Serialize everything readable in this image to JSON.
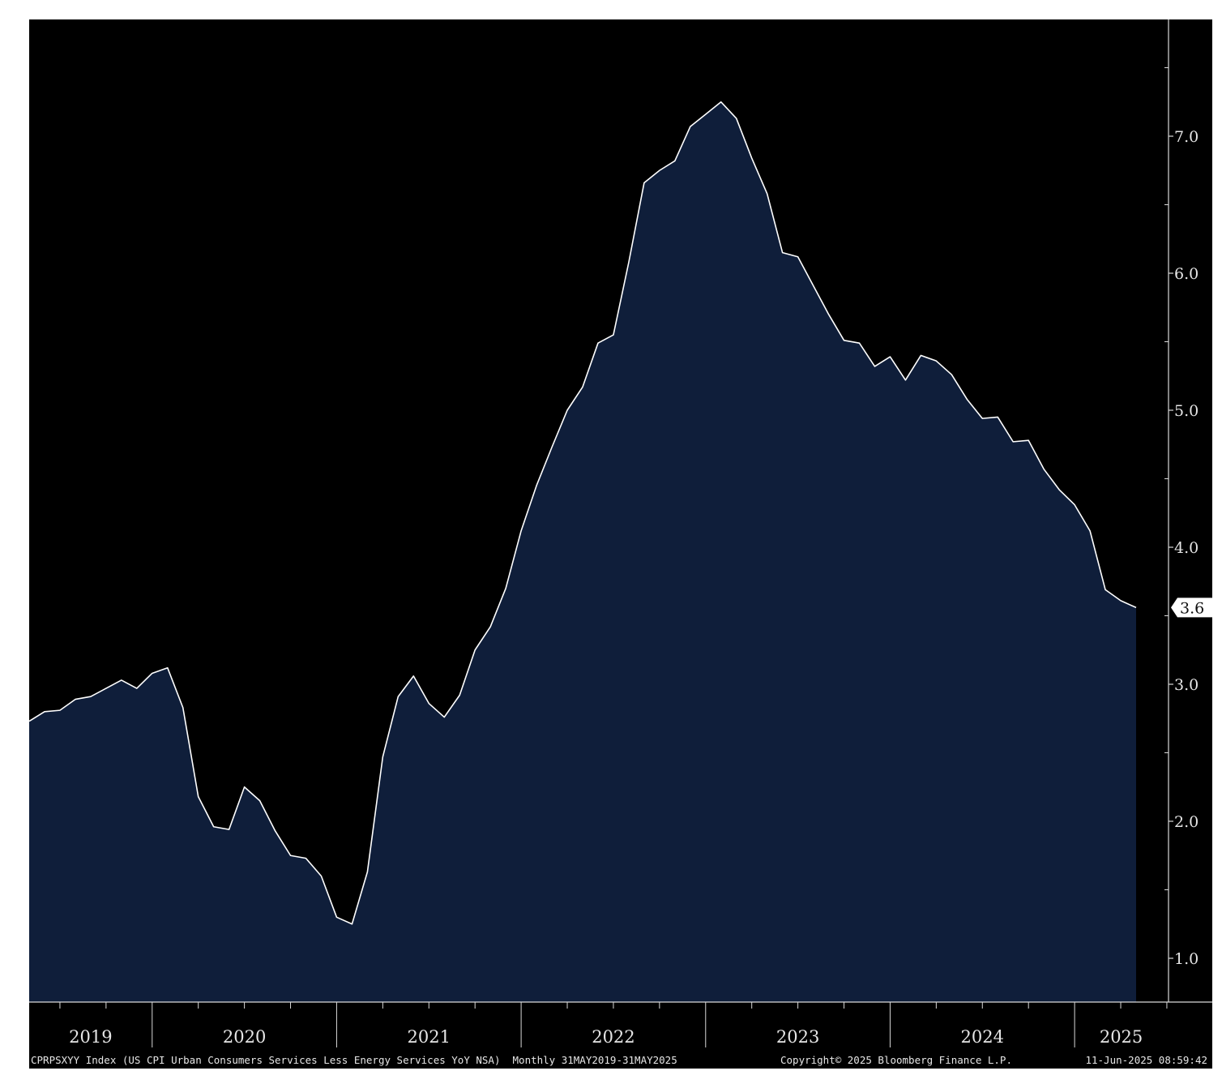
{
  "chart_data": {
    "type": "area",
    "ylim": [
      0.7,
      7.9
    ],
    "y_ticks": [
      1.0,
      2.0,
      3.0,
      4.0,
      5.0,
      6.0,
      7.0
    ],
    "y_tick_labels": [
      "1.0",
      "2.0",
      "3.0",
      "4.0",
      "5.0",
      "6.0",
      "7.0"
    ],
    "year_labels": [
      "2019",
      "2020",
      "2021",
      "2022",
      "2023",
      "2024",
      "2025"
    ],
    "x_start": "2019-05",
    "x_end": "2025-05",
    "series": [
      {
        "values": [
          2.73,
          2.8,
          2.81,
          2.89,
          2.91,
          2.97,
          3.03,
          2.97,
          3.08,
          3.12,
          2.83,
          2.18,
          1.96,
          1.94,
          2.25,
          2.15,
          1.93,
          1.75,
          1.73,
          1.6,
          1.3,
          1.25,
          1.63,
          2.47,
          2.91,
          3.06,
          2.86,
          2.76,
          2.92,
          3.25,
          3.42,
          3.7,
          4.12,
          4.45,
          4.73,
          5.0,
          5.17,
          5.49,
          5.55,
          6.08,
          6.66,
          6.75,
          6.82,
          7.07,
          7.16,
          7.25,
          7.13,
          6.84,
          6.58,
          6.15,
          6.12,
          5.91,
          5.7,
          5.51,
          5.49,
          5.32,
          5.39,
          5.22,
          5.4,
          5.36,
          5.26,
          5.08,
          4.94,
          4.95,
          4.77,
          4.78,
          4.57,
          4.42,
          4.31,
          4.12,
          3.69,
          3.61,
          3.56
        ],
        "fill": "#0f1e3a",
        "line": "#ffffff"
      }
    ],
    "last_value_label": "3.6"
  },
  "footer": {
    "series_description": "CPRPSXYY Index (US CPI Urban Consumers Services Less Energy Services YoY NSA)  Monthly 31MAY2019-31MAY2025",
    "copyright": "Copyright© 2025 Bloomberg Finance L.P.",
    "timestamp": "11-Jun-2025 08:59:42"
  }
}
